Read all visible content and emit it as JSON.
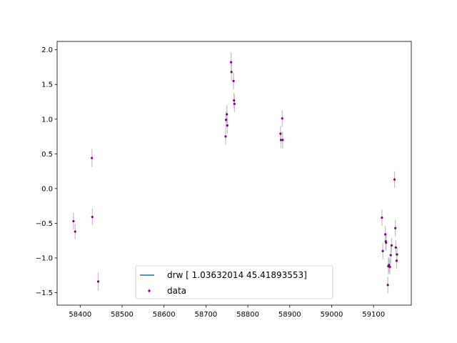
{
  "chart_data": {
    "type": "scatter",
    "xlim": [
      58345,
      59190
    ],
    "ylim": [
      -1.68,
      2.12
    ],
    "x_ticks": [
      58400,
      58500,
      58600,
      58700,
      58800,
      58900,
      59000,
      59100
    ],
    "y_ticks": [
      -1.5,
      -1.0,
      -0.5,
      0.0,
      0.5,
      1.0,
      1.5,
      2.0
    ],
    "x_tick_labels": [
      "58400",
      "58500",
      "58600",
      "58700",
      "58800",
      "58900",
      "59000",
      "59100"
    ],
    "y_tick_labels": [
      "−1.5",
      "−1.0",
      "−0.5",
      "0.0",
      "0.5",
      "1.0",
      "1.5",
      "2.0"
    ],
    "grid": false,
    "legend_position": "lower-center",
    "series": [
      {
        "name": "drw [ 1.03632014 45.41893553]",
        "kind": "line",
        "color": "#1f77b4",
        "x": [],
        "y": []
      },
      {
        "name": "data",
        "kind": "errorbar",
        "color": "#800080",
        "ecolor": "#c0c0c0",
        "points": [
          {
            "x": 58384,
            "y": -0.47,
            "err": 0.12
          },
          {
            "x": 58388,
            "y": -0.62,
            "err": 0.11
          },
          {
            "x": 58428,
            "y": 0.44,
            "err": 0.13
          },
          {
            "x": 58429,
            "y": -0.41,
            "err": 0.12
          },
          {
            "x": 58443,
            "y": -1.34,
            "err": 0.13
          },
          {
            "x": 58747,
            "y": 0.75,
            "err": 0.12
          },
          {
            "x": 58748,
            "y": 0.99,
            "err": 0.12
          },
          {
            "x": 58750,
            "y": 1.07,
            "err": 0.13
          },
          {
            "x": 58751,
            "y": 0.91,
            "err": 0.12
          },
          {
            "x": 58760,
            "y": 1.82,
            "err": 0.14
          },
          {
            "x": 58761,
            "y": 1.68,
            "err": 0.13
          },
          {
            "x": 58766,
            "y": 1.55,
            "err": 0.12
          },
          {
            "x": 58767,
            "y": 1.27,
            "err": 0.11
          },
          {
            "x": 58768,
            "y": 1.22,
            "err": 0.12
          },
          {
            "x": 58878,
            "y": 0.79,
            "err": 0.11
          },
          {
            "x": 58879,
            "y": 0.7,
            "err": 0.11
          },
          {
            "x": 58882,
            "y": 1.01,
            "err": 0.12
          },
          {
            "x": 58883,
            "y": 0.7,
            "err": 0.12
          },
          {
            "x": 59120,
            "y": -0.42,
            "err": 0.12
          },
          {
            "x": 59122,
            "y": -0.9,
            "err": 0.12
          },
          {
            "x": 59128,
            "y": -0.66,
            "err": 0.12
          },
          {
            "x": 59129,
            "y": -0.76,
            "err": 0.12
          },
          {
            "x": 59130,
            "y": -0.78,
            "err": 0.12
          },
          {
            "x": 59134,
            "y": -1.39,
            "err": 0.12
          },
          {
            "x": 59135,
            "y": -1.12,
            "err": 0.12
          },
          {
            "x": 59137,
            "y": -1.1,
            "err": 0.11
          },
          {
            "x": 59139,
            "y": -1.13,
            "err": 0.11
          },
          {
            "x": 59141,
            "y": -0.96,
            "err": 0.12
          },
          {
            "x": 59143,
            "y": -0.82,
            "err": 0.11
          },
          {
            "x": 59150,
            "y": 0.13,
            "err": 0.12
          },
          {
            "x": 59152,
            "y": -0.57,
            "err": 0.12
          },
          {
            "x": 59153,
            "y": -0.85,
            "err": 0.11
          },
          {
            "x": 59155,
            "y": -1.04,
            "err": 0.12
          },
          {
            "x": 59156,
            "y": -0.95,
            "err": 0.11
          }
        ]
      }
    ]
  }
}
